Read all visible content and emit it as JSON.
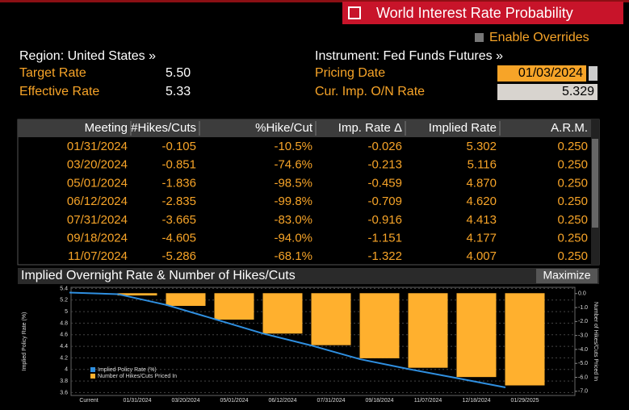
{
  "header": {
    "title": "World Interest Rate Probability",
    "enable_overrides": "Enable Overrides"
  },
  "info": {
    "region": "Region: United States »",
    "target_rate_label": "Target Rate",
    "target_rate": "5.50",
    "effective_rate_label": "Effective Rate",
    "effective_rate": "5.33",
    "instrument": "Instrument: Fed Funds Futures »",
    "pricing_date_label": "Pricing Date",
    "pricing_date": "01/03/2024",
    "cur_rate_label": "Cur. Imp. O/N Rate",
    "cur_rate": "5.329"
  },
  "table": {
    "columns": [
      "Meeting",
      "#Hikes/Cuts",
      "%Hike/Cut",
      "Imp. Rate Δ",
      "Implied Rate",
      "A.R.M."
    ],
    "rows": [
      [
        "01/31/2024",
        "-0.105",
        "-10.5%",
        "-0.026",
        "5.302",
        "0.250"
      ],
      [
        "03/20/2024",
        "-0.851",
        "-74.6%",
        "-0.213",
        "5.116",
        "0.250"
      ],
      [
        "05/01/2024",
        "-1.836",
        "-98.5%",
        "-0.459",
        "4.870",
        "0.250"
      ],
      [
        "06/12/2024",
        "-2.835",
        "-99.8%",
        "-0.709",
        "4.620",
        "0.250"
      ],
      [
        "07/31/2024",
        "-3.665",
        "-83.0%",
        "-0.916",
        "4.413",
        "0.250"
      ],
      [
        "09/18/2024",
        "-4.605",
        "-94.0%",
        "-1.151",
        "4.177",
        "0.250"
      ],
      [
        "11/07/2024",
        "-5.286",
        "-68.1%",
        "-1.322",
        "4.007",
        "0.250"
      ]
    ]
  },
  "chart_data": {
    "type": "combo",
    "title": "Implied Overnight Rate & Number of Hikes/Cuts",
    "button": "Maximize",
    "ylabel": "Implied Policy Rate (%)",
    "y2label": "Number of Hikes/Cuts Priced In",
    "categories": [
      "Current",
      "01/31/2024",
      "03/20/2024",
      "05/01/2024",
      "06/12/2024",
      "07/31/2024",
      "09/18/2024",
      "11/07/2024",
      "12/18/2024",
      "01/29/2025"
    ],
    "series": [
      {
        "name": "Implied Policy Rate (%)",
        "type": "line",
        "color": "#2f8fe0",
        "values": [
          5.33,
          5.302,
          5.116,
          4.87,
          4.62,
          4.413,
          4.177,
          4.007,
          3.85,
          3.69
        ]
      },
      {
        "name": "Number of Hikes/Cuts Priced In",
        "type": "bar",
        "axis": "y2",
        "color": "#ffb02e",
        "values": [
          0,
          -0.105,
          -0.851,
          -1.836,
          -2.835,
          -3.665,
          -4.605,
          -5.286,
          -5.95,
          -6.55
        ]
      }
    ],
    "ylim": [
      3.55,
      5.42
    ],
    "yticks": [
      3.6,
      3.8,
      4,
      4.2,
      4.4,
      4.6,
      4.8,
      5,
      5.2,
      5.4
    ],
    "y2lim": [
      0.45,
      -7.3
    ],
    "y2ticks": [
      {
        "value": 0,
        "label": "0.0"
      },
      {
        "value": -1,
        "label": "-1.0"
      },
      {
        "value": -2,
        "label": "-2.0"
      },
      {
        "value": -3,
        "label": "-3.0"
      },
      {
        "value": -4,
        "label": "-4.0"
      },
      {
        "value": -5,
        "label": "-5.0"
      },
      {
        "value": -6,
        "label": "-6.0"
      },
      {
        "value": -7,
        "label": "-7.0"
      }
    ],
    "grid": true
  }
}
